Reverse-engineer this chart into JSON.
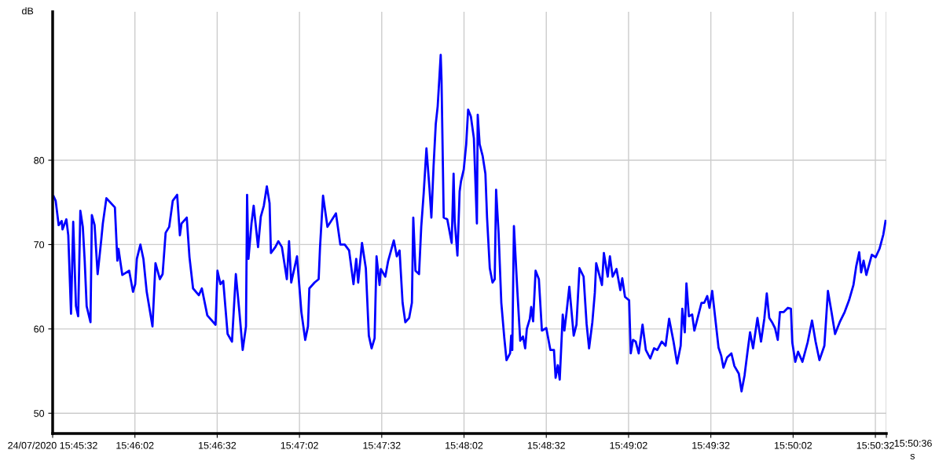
{
  "chart_data": {
    "type": "line",
    "xlabel": "s",
    "ylabel": "dB",
    "grid": true,
    "legend": false,
    "marker": "none",
    "line_style": "solid",
    "xlim": [
      "2020-07-24T15:45:32",
      "2020-07-24T15:50:36"
    ],
    "ylim": [
      47.6,
      97.6
    ],
    "yticks": [
      50,
      60,
      70,
      80
    ],
    "xticks": [
      {
        "value": "2020-07-24T15:45:32",
        "label": "24/07/2020 15:45:32"
      },
      {
        "value": "2020-07-24T15:46:02",
        "label": "15:46:02"
      },
      {
        "value": "2020-07-24T15:46:32",
        "label": "15:46:32"
      },
      {
        "value": "2020-07-24T15:47:02",
        "label": "15:47:02"
      },
      {
        "value": "2020-07-24T15:47:32",
        "label": "15:47:32"
      },
      {
        "value": "2020-07-24T15:48:02",
        "label": "15:48:02"
      },
      {
        "value": "2020-07-24T15:48:32",
        "label": "15:48:32"
      },
      {
        "value": "2020-07-24T15:49:02",
        "label": "15:49:02"
      },
      {
        "value": "2020-07-24T15:49:32",
        "label": "15:49:32"
      },
      {
        "value": "2020-07-24T15:50:02",
        "label": "15:50:02"
      },
      {
        "value": "2020-07-24T15:50:32",
        "label": "15:50:32"
      },
      {
        "value": "2020-07-24T15:50:36",
        "label": null
      }
    ],
    "annotations": [
      "15:50:36"
    ],
    "series": [
      {
        "color": "#0000ff",
        "x": [
          "2020-07-24T15:45:32.4",
          "2020-07-24T15:45:33.1",
          "2020-07-24T15:45:34.2",
          "2020-07-24T15:45:35.3",
          "2020-07-24T15:45:35.6",
          "2020-07-24T15:45:37",
          "2020-07-24T15:45:37.7",
          "2020-07-24T15:45:38.7",
          "2020-07-24T15:45:39.5",
          "2020-07-24T15:45:40.5",
          "2020-07-24T15:45:41.3",
          "2020-07-24T15:45:42.1",
          "2020-07-24T15:45:43",
          "2020-07-24T15:45:43.7",
          "2020-07-24T15:45:44.4",
          "2020-07-24T15:45:45.8",
          "2020-07-24T15:45:46.3",
          "2020-07-24T15:45:47.3",
          "2020-07-24T15:45:48.4",
          "2020-07-24T15:45:48.9",
          "2020-07-24T15:45:49.7",
          "2020-07-24T15:45:50.3",
          "2020-07-24T15:45:51.6",
          "2020-07-24T15:45:54.7",
          "2020-07-24T15:45:55.6",
          "2020-07-24T15:45:56",
          "2020-07-24T15:45:57.4",
          "2020-07-24T15:45:59.9",
          "2020-07-24T15:46:01.3",
          "2020-07-24T15:46:02.1",
          "2020-07-24T15:46:02.7",
          "2020-07-24T15:46:04",
          "2020-07-24T15:46:05.1",
          "2020-07-24T15:46:06.3",
          "2020-07-24T15:46:08.4",
          "2020-07-24T15:46:09.5",
          "2020-07-24T15:46:11.1",
          "2020-07-24T15:46:12.1",
          "2020-07-24T15:46:13.2",
          "2020-07-24T15:46:14.5",
          "2020-07-24T15:46:15.8",
          "2020-07-24T15:46:17.4",
          "2020-07-24T15:46:18.4",
          "2020-07-24T15:46:19",
          "2020-07-24T15:46:20.9",
          "2020-07-24T15:46:21.9",
          "2020-07-24T15:46:23.2",
          "2020-07-24T15:46:25.3",
          "2020-07-24T15:46:26.4",
          "2020-07-24T15:46:28.4",
          "2020-07-24T15:46:31.4",
          "2020-07-24T15:46:32.1",
          "2020-07-24T15:46:33.2",
          "2020-07-24T15:46:34.2",
          "2020-07-24T15:46:35.8",
          "2020-07-24T15:46:37.4",
          "2020-07-24T15:46:38.8",
          "2020-07-24T15:46:40.1",
          "2020-07-24T15:46:41.3",
          "2020-07-24T15:46:42.5",
          "2020-07-24T15:46:42.9",
          "2020-07-24T15:46:43.4",
          "2020-07-24T15:46:44.5",
          "2020-07-24T15:46:45.3",
          "2020-07-24T15:46:46.9",
          "2020-07-24T15:46:47.9",
          "2020-07-24T15:46:49",
          "2020-07-24T15:46:50.1",
          "2020-07-24T15:46:51.1",
          "2020-07-24T15:46:51.6",
          "2020-07-24T15:46:53.2",
          "2020-07-24T15:46:54.3",
          "2020-07-24T15:46:55.6",
          "2020-07-24T15:46:57.4",
          "2020-07-24T15:46:58.2",
          "2020-07-24T15:46:59",
          "2020-07-24T15:47:01.1",
          "2020-07-24T15:47:02.7",
          "2020-07-24T15:47:04.1",
          "2020-07-24T15:47:05.1",
          "2020-07-24T15:47:05.6",
          "2020-07-24T15:47:07.5",
          "2020-07-24T15:47:09",
          "2020-07-24T15:47:09.5",
          "2020-07-24T15:47:10.6",
          "2020-07-24T15:47:12.2",
          "2020-07-24T15:47:15.3",
          "2020-07-24T15:47:16.9",
          "2020-07-24T15:47:18.5",
          "2020-07-24T15:47:20.1",
          "2020-07-24T15:47:21.7",
          "2020-07-24T15:47:22.7",
          "2020-07-24T15:47:23.4",
          "2020-07-24T15:47:24.8",
          "2020-07-24T15:47:26.2",
          "2020-07-24T15:47:27.3",
          "2020-07-24T15:47:28.3",
          "2020-07-24T15:47:29.4",
          "2020-07-24T15:47:30.1",
          "2020-07-24T15:47:31.2",
          "2020-07-24T15:47:31.7",
          "2020-07-24T15:47:33.3",
          "2020-07-24T15:47:34.3",
          "2020-07-24T15:47:36.4",
          "2020-07-24T15:47:37.5",
          "2020-07-24T15:47:38.5",
          "2020-07-24T15:47:39.6",
          "2020-07-24T15:47:40.6",
          "2020-07-24T15:47:42",
          "2020-07-24T15:47:43",
          "2020-07-24T15:47:43.5",
          "2020-07-24T15:47:44.3",
          "2020-07-24T15:47:45.6",
          "2020-07-24T15:47:46.4",
          "2020-07-24T15:47:47.3",
          "2020-07-24T15:47:48.3",
          "2020-07-24T15:47:49.4",
          "2020-07-24T15:47:50.1",
          "2020-07-24T15:47:50.9",
          "2020-07-24T15:47:51.7",
          "2020-07-24T15:47:52.4",
          "2020-07-24T15:47:53",
          "2020-07-24T15:47:53.5",
          "2020-07-24T15:47:53.8",
          "2020-07-24T15:47:54.6",
          "2020-07-24T15:47:55.9",
          "2020-07-24T15:47:57.5",
          "2020-07-24T15:47:58.2",
          "2020-07-24T15:47:58.6",
          "2020-07-24T15:47:59.6",
          "2020-07-24T15:48:00.4",
          "2020-07-24T15:48:00.9",
          "2020-07-24T15:48:01.9",
          "2020-07-24T15:48:02.8",
          "2020-07-24T15:48:03.5",
          "2020-07-24T15:48:04.5",
          "2020-07-24T15:48:05.6",
          "2020-07-24T15:48:06.7",
          "2020-07-24T15:48:07",
          "2020-07-24T15:48:07.7",
          "2020-07-24T15:48:08.8",
          "2020-07-24T15:48:09.8",
          "2020-07-24T15:48:10.4",
          "2020-07-24T15:48:11.4",
          "2020-07-24T15:48:12.4",
          "2020-07-24T15:48:13.2",
          "2020-07-24T15:48:13.7",
          "2020-07-24T15:48:14.6",
          "2020-07-24T15:48:15.6",
          "2020-07-24T15:48:16.7",
          "2020-07-24T15:48:17.5",
          "2020-07-24T15:48:18.8",
          "2020-07-24T15:48:19.2",
          "2020-07-24T15:48:19.6",
          "2020-07-24T15:48:20.2",
          "2020-07-24T15:48:21.4",
          "2020-07-24T15:48:22.5",
          "2020-07-24T15:48:23.5",
          "2020-07-24T15:48:24.3",
          "2020-07-24T15:48:24.9",
          "2020-07-24T15:48:26",
          "2020-07-24T15:48:26.5",
          "2020-07-24T15:48:27.2",
          "2020-07-24T15:48:28.1",
          "2020-07-24T15:48:29.3",
          "2020-07-24T15:48:30.4",
          "2020-07-24T15:48:32",
          "2020-07-24T15:48:33.5",
          "2020-07-24T15:48:34.8",
          "2020-07-24T15:48:35.4",
          "2020-07-24T15:48:36.2",
          "2020-07-24T15:48:36.9",
          "2020-07-24T15:48:38",
          "2020-07-24T15:48:38.6",
          "2020-07-24T15:48:39.3",
          "2020-07-24T15:48:40.4",
          "2020-07-24T15:48:42",
          "2020-07-24T15:48:43",
          "2020-07-24T15:48:44.1",
          "2020-07-24T15:48:45.6",
          "2020-07-24T15:48:46.7",
          "2020-07-24T15:48:47.6",
          "2020-07-24T15:48:48.8",
          "2020-07-24T15:48:49.7",
          "2020-07-24T15:48:50.2",
          "2020-07-24T15:48:51.5",
          "2020-07-24T15:48:52.3",
          "2020-07-24T15:48:53",
          "2020-07-24T15:48:54.4",
          "2020-07-24T15:48:55.2",
          "2020-07-24T15:48:56.2",
          "2020-07-24T15:48:57.6",
          "2020-07-24T15:48:59",
          "2020-07-24T15:48:59.7",
          "2020-07-24T15:49:00.7",
          "2020-07-24T15:49:02.2",
          "2020-07-24T15:49:02.8",
          "2020-07-24T15:49:03.6",
          "2020-07-24T15:49:04.6",
          "2020-07-24T15:49:05.7",
          "2020-07-24T15:49:07.1",
          "2020-07-24T15:49:08.3",
          "2020-07-24T15:49:09.9",
          "2020-07-24T15:49:11.3",
          "2020-07-24T15:49:12.5",
          "2020-07-24T15:49:14.1",
          "2020-07-24T15:49:15.5",
          "2020-07-24T15:49:16.8",
          "2020-07-24T15:49:18.4",
          "2020-07-24T15:49:19.7",
          "2020-07-24T15:49:21",
          "2020-07-24T15:49:21.6",
          "2020-07-24T15:49:22.5",
          "2020-07-24T15:49:23.1",
          "2020-07-24T15:49:24",
          "2020-07-24T15:49:25.2",
          "2020-07-24T15:49:26",
          "2020-07-24T15:49:27.5",
          "2020-07-24T15:49:28.6",
          "2020-07-24T15:49:29.6",
          "2020-07-24T15:49:30.7",
          "2020-07-24T15:49:31.5",
          "2020-07-24T15:49:32.5",
          "2020-07-24T15:49:34.8",
          "2020-07-24T15:49:35.8",
          "2020-07-24T15:49:36.6",
          "2020-07-24T15:49:37.9",
          "2020-07-24T15:49:39.5",
          "2020-07-24T15:49:40.6",
          "2020-07-24T15:49:42.2",
          "2020-07-24T15:49:43.2",
          "2020-07-24T15:49:44.3",
          "2020-07-24T15:49:45.3",
          "2020-07-24T15:49:46.3",
          "2020-07-24T15:49:47.4",
          "2020-07-24T15:49:49",
          "2020-07-24T15:49:50.3",
          "2020-07-24T15:49:51.5",
          "2020-07-24T15:49:52.4",
          "2020-07-24T15:49:53.3",
          "2020-07-24T15:49:54.3",
          "2020-07-24T15:49:55.4",
          "2020-07-24T15:49:56.4",
          "2020-07-24T15:49:57.2",
          "2020-07-24T15:49:58.6",
          "2020-07-24T15:50:00.1",
          "2020-07-24T15:50:01.2",
          "2020-07-24T15:50:01.7",
          "2020-07-24T15:50:02.8",
          "2020-07-24T15:50:03.8",
          "2020-07-24T15:50:05.4",
          "2020-07-24T15:50:07.3",
          "2020-07-24T15:50:08.9",
          "2020-07-24T15:50:10.2",
          "2020-07-24T15:50:11.6",
          "2020-07-24T15:50:13.4",
          "2020-07-24T15:50:14.7",
          "2020-07-24T15:50:16",
          "2020-07-24T15:50:17.3",
          "2020-07-24T15:50:19",
          "2020-07-24T15:50:20.8",
          "2020-07-24T15:50:22.4",
          "2020-07-24T15:50:24",
          "2020-07-24T15:50:25",
          "2020-07-24T15:50:26.1",
          "2020-07-24T15:50:26.8",
          "2020-07-24T15:50:27.7",
          "2020-07-24T15:50:28.7",
          "2020-07-24T15:50:30.7",
          "2020-07-24T15:50:32.1",
          "2020-07-24T15:50:33.5",
          "2020-07-24T15:50:34.9",
          "2020-07-24T15:50:35.7"
        ],
        "values": [
          75.7,
          75.2,
          72.3,
          72.8,
          71.8,
          73,
          71.1,
          61.8,
          72.7,
          62.7,
          61.5,
          74.0,
          72.1,
          68,
          62.7,
          60.8,
          73.5,
          72.3,
          66.5,
          68.0,
          70.5,
          72.5,
          75.5,
          74.4,
          68.1,
          69.5,
          66.4,
          66.9,
          64.4,
          65.3,
          68.3,
          70.0,
          68.3,
          64.4,
          60.3,
          67.8,
          65.9,
          66.5,
          71.4,
          72.1,
          75.2,
          75.9,
          71.1,
          72.5,
          73.2,
          68.5,
          64.8,
          64.0,
          64.8,
          61.6,
          60.5,
          66.9,
          65.3,
          65.7,
          59.4,
          58.5,
          66.5,
          62.0,
          57.5,
          60.3,
          75.9,
          68.3,
          72.5,
          74.6,
          69.7,
          73.3,
          74.6,
          76.9,
          74.9,
          69.0,
          69.7,
          70.4,
          69.7,
          65.9,
          70.4,
          65.5,
          68.6,
          62.0,
          58.7,
          60.3,
          64.8,
          65.5,
          65.9,
          69.7,
          75.8,
          72.1,
          73.7,
          70.0,
          70.0,
          69.3,
          65.3,
          68.3,
          65.5,
          70.2,
          67.2,
          59.2,
          57.7,
          58.9,
          68.6,
          65.2,
          67.1,
          66.2,
          68.0,
          70.5,
          68.6,
          69.3,
          63.1,
          60.8,
          61.3,
          63.1,
          73.2,
          66.9,
          66.5,
          72.1,
          76.1,
          81.4,
          76.7,
          73.2,
          79.3,
          84.3,
          86.4,
          89.7,
          92.5,
          89.5,
          73.2,
          73.0,
          70.2,
          78.4,
          72.8,
          68.7,
          76.3,
          77.5,
          78.9,
          81.9,
          86.0,
          85.2,
          82.6,
          72.5,
          85.4,
          81.9,
          80.5,
          78.4,
          73.2,
          67.2,
          65.5,
          65.9,
          76.5,
          71.4,
          63.1,
          58.9,
          56.3,
          57.1,
          59.2,
          57.5,
          72.2,
          64.8,
          58.6,
          59.1,
          57.7,
          60.0,
          61.2,
          62.6,
          60.9,
          66.9,
          65.9,
          59.8,
          60.1,
          57.5,
          57.5,
          54.2,
          55.7,
          54.0,
          61.7,
          59.8,
          61.7,
          65.0,
          59.2,
          60.5,
          67.2,
          66.2,
          60.6,
          57.7,
          60.8,
          64.3,
          67.8,
          66.2,
          65.2,
          69.0,
          66.2,
          68.6,
          66.2,
          67.1,
          64.6,
          66.0,
          63.8,
          63.4,
          57.1,
          58.7,
          58.5,
          57.1,
          60.5,
          57.5,
          56.5,
          57.7,
          57.5,
          58.5,
          58.0,
          61.2,
          58.5,
          55.9,
          58.0,
          62.4,
          59.6,
          65.4,
          61.5,
          61.7,
          59.8,
          61.7,
          63.1,
          63.1,
          63.9,
          62.5,
          64.5,
          57.8,
          56.8,
          55.4,
          56.6,
          57.1,
          55.6,
          54.7,
          52.6,
          54.5,
          57.1,
          59.6,
          57.7,
          61.3,
          58.5,
          61.2,
          64.2,
          61.3,
          60.8,
          60.1,
          58.7,
          62.0,
          62.0,
          62.5,
          62.4,
          58.4,
          56.1,
          57.3,
          56.1,
          58.4,
          61.0,
          58.5,
          56.3,
          58.0,
          64.5,
          62.0,
          59.4,
          60.8,
          62.0,
          63.4,
          65.2,
          67.4,
          69.1,
          66.7,
          68.1,
          66.4,
          68.8,
          68.5,
          69.5,
          71.2,
          72.8
        ]
      }
    ]
  }
}
